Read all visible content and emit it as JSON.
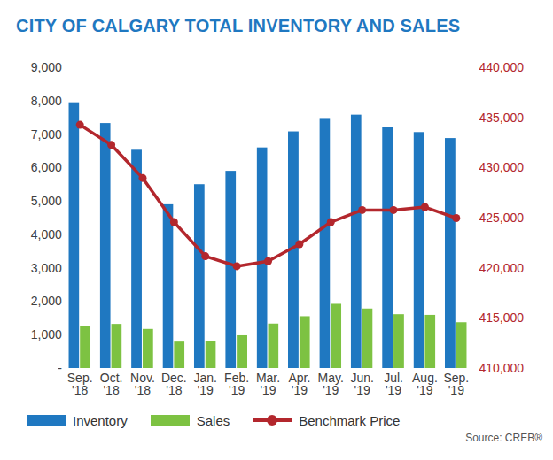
{
  "chart_data": {
    "type": "bar",
    "title": "CITY OF CALGARY TOTAL INVENTORY AND SALES",
    "caption": "Source: CREB®",
    "categories": [
      "Sep. '18",
      "Oct. '18",
      "Nov. '18",
      "Dec. '18",
      "Jan. '19",
      "Feb. '19",
      "Mar. '19",
      "Apr. '19",
      "May. '19",
      "Jun. '19",
      "Jul. '19",
      "Aug. '19",
      "Sep. '19"
    ],
    "series": [
      {
        "name": "Inventory",
        "type": "bar",
        "color": "#1f78c1",
        "values": [
          7950,
          7330,
          6530,
          4900,
          5500,
          5900,
          6600,
          7080,
          7480,
          7580,
          7200,
          7060,
          6880
        ]
      },
      {
        "name": "Sales",
        "type": "bar",
        "color": "#7dc242",
        "values": [
          1260,
          1320,
          1170,
          790,
          800,
          980,
          1330,
          1550,
          1920,
          1780,
          1610,
          1590,
          1370
        ]
      },
      {
        "name": "Benchmark Price",
        "type": "line",
        "axis": "y2",
        "color": "#b3272d",
        "marker": "circle",
        "values": [
          434300,
          432300,
          429000,
          424600,
          421200,
          420200,
          420700,
          422400,
          424600,
          425800,
          425800,
          426100,
          425000
        ]
      }
    ],
    "ylim": [
      0,
      9000
    ],
    "yticks": [
      {
        "value": 0,
        "label": "-"
      },
      {
        "value": 1000,
        "label": "1,000"
      },
      {
        "value": 2000,
        "label": "2,000"
      },
      {
        "value": 3000,
        "label": "3,000"
      },
      {
        "value": 4000,
        "label": "4,000"
      },
      {
        "value": 5000,
        "label": "5,000"
      },
      {
        "value": 6000,
        "label": "6,000"
      },
      {
        "value": 7000,
        "label": "7,000"
      },
      {
        "value": 8000,
        "label": "8,000"
      },
      {
        "value": 9000,
        "label": "9,000"
      }
    ],
    "y2lim": [
      410000,
      440000
    ],
    "y2ticks": [
      {
        "value": 410000,
        "label": "410,000"
      },
      {
        "value": 415000,
        "label": "415,000"
      },
      {
        "value": 420000,
        "label": "420,000"
      },
      {
        "value": 425000,
        "label": "425,000"
      },
      {
        "value": 430000,
        "label": "430,000"
      },
      {
        "value": 435000,
        "label": "435,000"
      },
      {
        "value": 440000,
        "label": "440,000"
      }
    ],
    "grid": false,
    "legend": "bottom"
  }
}
